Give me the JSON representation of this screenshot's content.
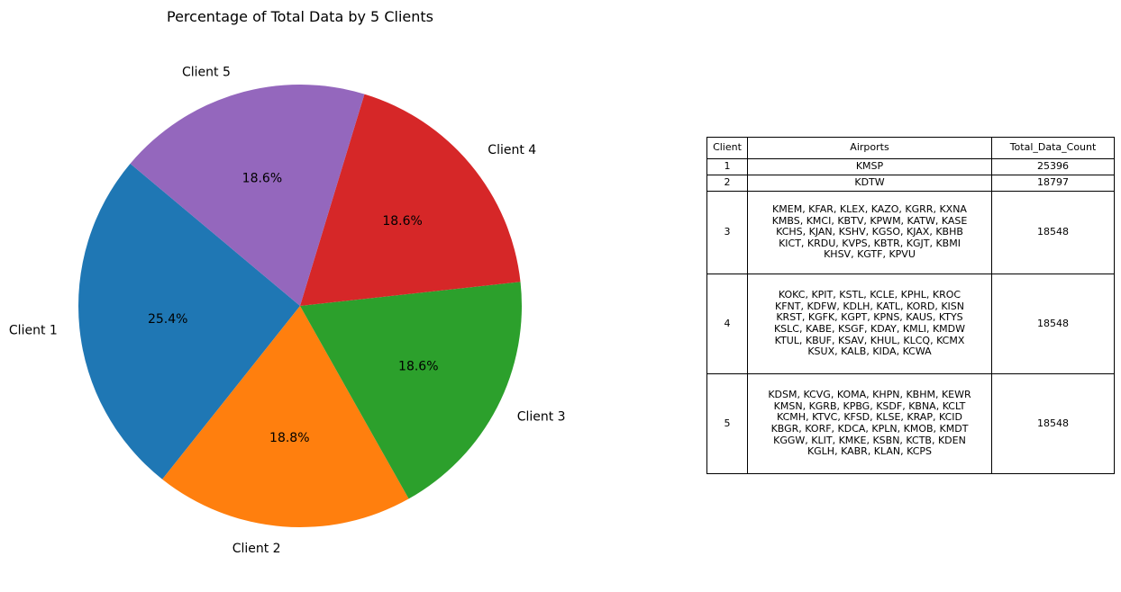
{
  "chart_data": {
    "type": "pie",
    "title": "Percentage of Total Data by 5 Clients",
    "start_angle_deg": 140,
    "direction": "counterclockwise",
    "slices": [
      {
        "label": "Client 1",
        "value": 25396,
        "percent_label": "25.4%",
        "color": "#1f77b4"
      },
      {
        "label": "Client 2",
        "value": 18797,
        "percent_label": "18.8%",
        "color": "#ff7f0e"
      },
      {
        "label": "Client 3",
        "value": 18548,
        "percent_label": "18.6%",
        "color": "#2ca02c"
      },
      {
        "label": "Client 4",
        "value": 18548,
        "percent_label": "18.6%",
        "color": "#d62728"
      },
      {
        "label": "Client 5",
        "value": 18548,
        "percent_label": "18.6%",
        "color": "#9467bd"
      }
    ]
  },
  "table": {
    "headers": {
      "client": "Client",
      "airports": "Airports",
      "total": "Total_Data_Count"
    },
    "rows": [
      {
        "client": "1",
        "airports": [
          "KMSP"
        ],
        "total": "25396"
      },
      {
        "client": "2",
        "airports": [
          "KDTW"
        ],
        "total": "18797"
      },
      {
        "client": "3",
        "airports": [
          "KMEM, KFAR, KLEX, KAZO, KGRR, KXNA",
          "KMBS, KMCI, KBTV, KPWM, KATW, KASE",
          "KCHS, KJAN, KSHV, KGSO, KJAX, KBHB",
          "KICT, KRDU, KVPS, KBTR, KGJT, KBMI",
          "KHSV, KGTF, KPVU"
        ],
        "total": "18548"
      },
      {
        "client": "4",
        "airports": [
          "KOKC, KPIT, KSTL, KCLE, KPHL, KROC",
          "KFNT, KDFW, KDLH, KATL, KORD, KISN",
          "KRST, KGFK, KGPT, KPNS, KAUS, KTYS",
          "KSLC, KABE, KSGF, KDAY, KMLI, KMDW",
          "KTUL, KBUF, KSAV, KHUL, KLCQ, KCMX",
          "KSUX, KALB, KIDA, KCWA"
        ],
        "total": "18548"
      },
      {
        "client": "5",
        "airports": [
          "KDSM, KCVG, KOMA, KHPN, KBHM, KEWR",
          "KMSN, KGRB, KPBG, KSDF, KBNA, KCLT",
          "KCMH, KTVC, KFSD, KLSE, KRAP, KCID",
          "KBGR, KORF, KDCA, KPLN, KMOB, KMDT",
          "KGGW, KLIT, KMKE, KSBN, KCTB, KDEN",
          "KGLH, KABR, KLAN, KCPS"
        ],
        "total": "18548"
      }
    ]
  }
}
